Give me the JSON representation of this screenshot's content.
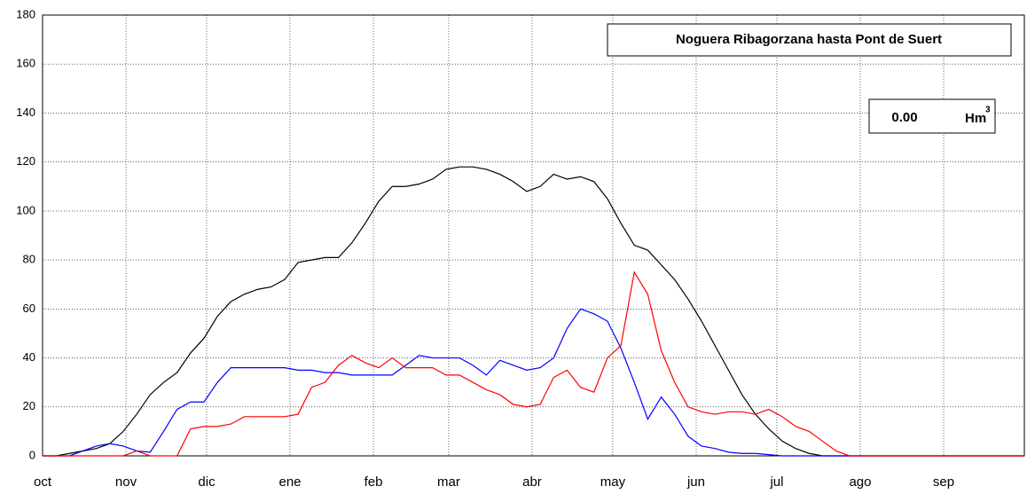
{
  "chart_data": {
    "type": "line",
    "title": "Noguera Ribagorzana hasta Pont de Suert",
    "value_box": {
      "value": "0.00",
      "unit": "Hm",
      "unit_sup": "3"
    },
    "x": [
      0,
      5,
      10,
      15,
      20,
      25,
      30,
      35,
      40,
      45,
      50,
      55,
      60,
      65,
      70,
      75,
      80,
      85,
      90,
      95,
      100,
      105,
      110,
      115,
      120,
      125,
      130,
      135,
      140,
      145,
      150,
      155,
      160,
      165,
      170,
      175,
      180,
      185,
      190,
      195,
      200,
      205,
      210,
      215,
      220,
      225,
      230,
      235,
      240,
      245,
      250,
      255,
      260,
      265,
      270,
      275,
      280,
      285,
      290,
      295,
      300,
      305,
      310,
      315,
      320,
      325,
      330,
      335,
      340,
      345,
      350,
      355,
      360,
      365
    ],
    "series": [
      {
        "color": "#000000",
        "values": [
          0,
          0,
          1,
          2,
          3,
          5,
          10,
          17,
          25,
          30,
          34,
          42,
          48,
          57,
          63,
          66,
          68,
          69,
          72,
          79,
          80,
          81,
          81,
          87,
          95,
          104,
          110,
          110,
          111,
          113,
          117,
          118,
          118,
          117,
          115,
          112,
          108,
          110,
          115,
          113,
          114,
          112,
          105,
          95,
          86,
          84,
          78,
          72,
          64,
          55,
          45,
          35,
          25,
          17,
          11,
          6,
          3,
          1,
          0,
          0,
          0,
          0,
          0,
          0,
          0,
          0,
          0,
          0,
          0,
          0,
          0,
          0,
          0,
          0
        ]
      },
      {
        "color": "#0000ff",
        "values": [
          0,
          0,
          0,
          2,
          4,
          5,
          4,
          2,
          1.5,
          10,
          19,
          22,
          22,
          30,
          36,
          36,
          36,
          36,
          36,
          35,
          35,
          34,
          34,
          33,
          33,
          33,
          33,
          37,
          41,
          40,
          40,
          40,
          37,
          33,
          39,
          37,
          35,
          36,
          40,
          52,
          60,
          58,
          55,
          44,
          30,
          15,
          24,
          17,
          8,
          4,
          3,
          1.5,
          1,
          1,
          0.5,
          0,
          0,
          0,
          0,
          0,
          0,
          0,
          0,
          0,
          0,
          0,
          0,
          0,
          0,
          0,
          0,
          0,
          0,
          0
        ]
      },
      {
        "color": "#ff0000",
        "values": [
          0,
          0,
          0,
          0,
          0,
          0,
          0,
          2,
          0,
          0,
          0,
          11,
          12,
          12,
          13,
          16,
          16,
          16,
          16,
          17,
          28,
          30,
          37,
          41,
          38,
          36,
          40,
          36,
          36,
          36,
          33,
          33,
          30,
          27,
          25,
          21,
          20,
          21,
          32,
          35,
          28,
          26,
          40,
          45,
          75,
          66,
          43,
          30,
          20,
          18,
          17,
          18,
          18,
          17,
          19,
          16,
          12,
          10,
          6,
          2,
          0,
          0,
          0,
          0,
          0,
          0,
          0,
          0,
          0,
          0,
          0,
          0,
          0,
          0
        ]
      }
    ],
    "xlim": [
      0,
      365
    ],
    "xticks": [
      {
        "value": 0,
        "label": "oct"
      },
      {
        "value": 31,
        "label": "nov"
      },
      {
        "value": 61,
        "label": "dic"
      },
      {
        "value": 92,
        "label": "ene"
      },
      {
        "value": 123,
        "label": "feb"
      },
      {
        "value": 151,
        "label": "mar"
      },
      {
        "value": 182,
        "label": "abr"
      },
      {
        "value": 212,
        "label": "may"
      },
      {
        "value": 243,
        "label": "jun"
      },
      {
        "value": 273,
        "label": "jul"
      },
      {
        "value": 304,
        "label": "ago"
      },
      {
        "value": 335,
        "label": "sep"
      }
    ],
    "ylim": [
      0,
      180
    ],
    "yticks": [
      0,
      20,
      40,
      60,
      80,
      100,
      120,
      140,
      160,
      180
    ],
    "grid": true
  }
}
